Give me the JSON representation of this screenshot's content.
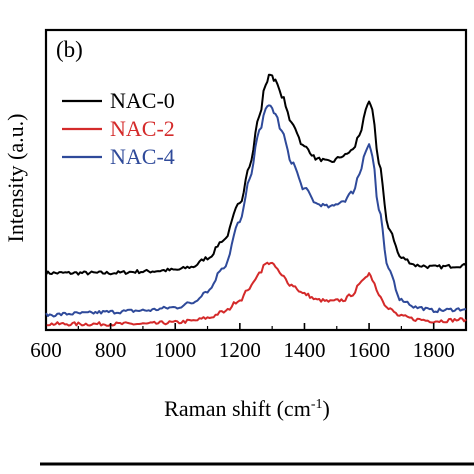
{
  "chart_data": {
    "type": "line",
    "panel_label": "(b)",
    "xlabel": "Raman shift (cm",
    "xlabel_superscript": "-1",
    "xlabel_suffix": ")",
    "ylabel": "Intensity (a.u.)",
    "xlim": [
      600,
      1900
    ],
    "ylim": [
      0,
      1
    ],
    "xticks": [
      600,
      800,
      1000,
      1200,
      1400,
      1600,
      1800
    ],
    "yticks_visible": false,
    "grid": false,
    "legend_position": "top-left",
    "series": [
      {
        "name": "NAC-0",
        "color": "#000000",
        "x": [
          600,
          700,
          800,
          900,
          1000,
          1050,
          1100,
          1150,
          1200,
          1230,
          1260,
          1280,
          1295,
          1310,
          1330,
          1360,
          1400,
          1440,
          1480,
          1520,
          1550,
          1570,
          1590,
          1600,
          1610,
          1630,
          1660,
          1700,
          1750,
          1800,
          1900
        ],
        "y": [
          0.19,
          0.19,
          0.19,
          0.195,
          0.2,
          0.21,
          0.24,
          0.3,
          0.42,
          0.55,
          0.71,
          0.82,
          0.855,
          0.83,
          0.78,
          0.69,
          0.61,
          0.57,
          0.56,
          0.58,
          0.6,
          0.65,
          0.73,
          0.76,
          0.73,
          0.56,
          0.34,
          0.24,
          0.215,
          0.21,
          0.215
        ]
      },
      {
        "name": "NAC-2",
        "color": "#d42a2a",
        "x": [
          600,
          700,
          800,
          900,
          1000,
          1050,
          1100,
          1150,
          1200,
          1230,
          1260,
          1280,
          1295,
          1310,
          1330,
          1360,
          1400,
          1440,
          1480,
          1520,
          1550,
          1570,
          1590,
          1600,
          1610,
          1630,
          1660,
          1700,
          1750,
          1800,
          1900
        ],
        "y": [
          0.02,
          0.02,
          0.02,
          0.02,
          0.025,
          0.03,
          0.04,
          0.06,
          0.1,
          0.14,
          0.19,
          0.22,
          0.225,
          0.21,
          0.18,
          0.15,
          0.12,
          0.1,
          0.095,
          0.1,
          0.12,
          0.15,
          0.18,
          0.19,
          0.17,
          0.12,
          0.07,
          0.045,
          0.035,
          0.03,
          0.035
        ]
      },
      {
        "name": "NAC-4",
        "color": "#2f4a9a",
        "x": [
          600,
          700,
          800,
          900,
          1000,
          1050,
          1100,
          1150,
          1200,
          1230,
          1260,
          1280,
          1295,
          1310,
          1330,
          1360,
          1400,
          1440,
          1480,
          1520,
          1550,
          1570,
          1590,
          1600,
          1610,
          1630,
          1660,
          1700,
          1750,
          1800,
          1900
        ],
        "y": [
          0.05,
          0.055,
          0.06,
          0.065,
          0.075,
          0.09,
          0.13,
          0.21,
          0.36,
          0.5,
          0.66,
          0.74,
          0.745,
          0.72,
          0.66,
          0.56,
          0.47,
          0.42,
          0.41,
          0.43,
          0.46,
          0.52,
          0.6,
          0.62,
          0.58,
          0.4,
          0.2,
          0.1,
          0.075,
          0.065,
          0.07
        ]
      }
    ]
  }
}
